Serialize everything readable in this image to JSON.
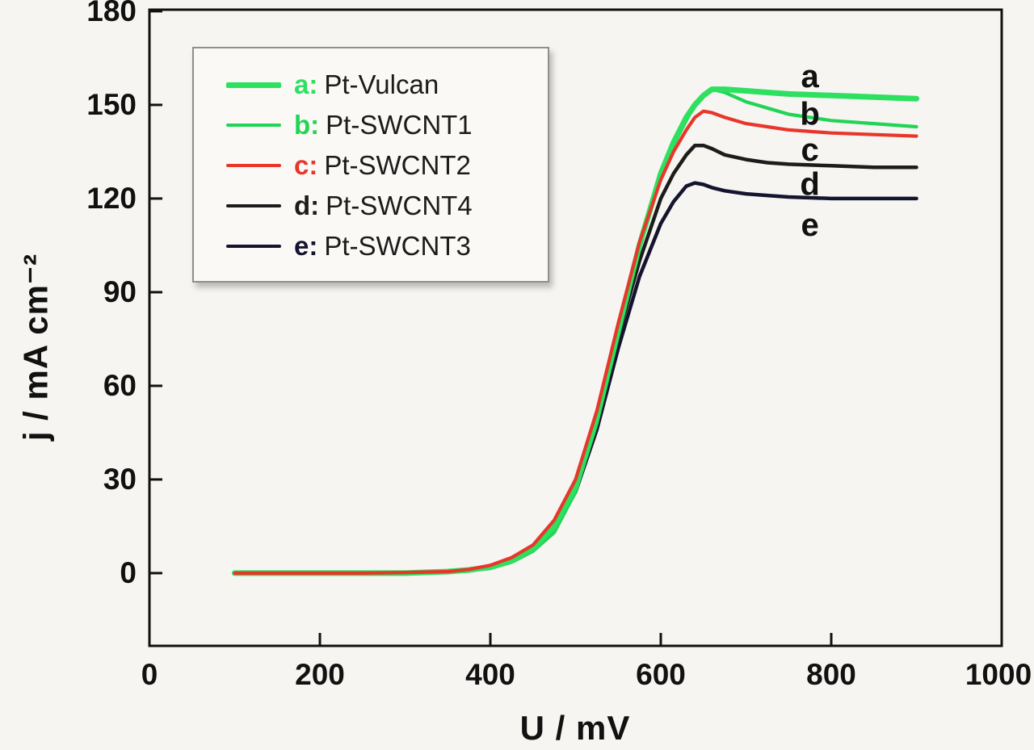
{
  "chart_data": {
    "type": "line",
    "title": "",
    "xlabel": "U / mV",
    "ylabel": "j / mA cm⁻²",
    "xlim": [
      0,
      1000
    ],
    "ylim": [
      -23.3,
      180.5
    ],
    "xticks": [
      0,
      200,
      400,
      600,
      800,
      1000
    ],
    "yticks": [
      0,
      30,
      60,
      90,
      120,
      150,
      180
    ],
    "grid": false,
    "legend_position": "upper-left",
    "x": [
      100,
      150,
      200,
      250,
      300,
      350,
      375,
      400,
      425,
      450,
      475,
      500,
      525,
      550,
      575,
      600,
      615,
      630,
      640,
      650,
      660,
      675,
      700,
      725,
      750,
      800,
      850,
      900
    ],
    "series": [
      {
        "name": "Pt-SWCNT3",
        "letter": "e",
        "color": "#14142e",
        "width": 4.5,
        "values": [
          0,
          0,
          0,
          0,
          0,
          0.4,
          1,
          2,
          4,
          7.5,
          14,
          26,
          46,
          72,
          95,
          112,
          119,
          124,
          125,
          124.5,
          123.5,
          122.5,
          121.5,
          121,
          120.5,
          120,
          120,
          120
        ]
      },
      {
        "name": "Pt-SWCNT4",
        "letter": "d",
        "color": "#1c1c1c",
        "width": 4.5,
        "values": [
          0,
          0,
          0,
          0,
          0,
          0.4,
          1,
          2,
          4,
          8,
          15,
          28,
          49,
          76,
          100,
          120,
          128,
          134,
          137,
          137,
          136,
          134,
          132.5,
          131.5,
          131,
          130.5,
          130,
          130
        ]
      },
      {
        "name": "Pt-SWCNT1",
        "letter": "b",
        "color": "#22d456",
        "width": 4.2,
        "values": [
          0,
          0,
          0,
          0,
          0,
          0.3,
          0.8,
          1.5,
          3.5,
          7,
          13,
          26,
          48,
          76,
          104,
          127,
          137,
          145,
          150,
          153,
          155,
          154,
          151,
          149,
          147,
          145,
          144,
          143
        ]
      },
      {
        "name": "Pt-Vulcan",
        "letter": "a",
        "color": "#2ee05f",
        "width": 7,
        "values": [
          0,
          0,
          0,
          0,
          0,
          0.5,
          1,
          2,
          4,
          8,
          15,
          28,
          50,
          78,
          105,
          128,
          138,
          146,
          150,
          153,
          155,
          155,
          154.5,
          154,
          153.5,
          153,
          152.5,
          152
        ]
      },
      {
        "name": "Pt-SWCNT2",
        "letter": "c",
        "color": "#e8362b",
        "width": 4.2,
        "values": [
          0,
          0,
          0,
          0,
          0.2,
          0.5,
          1.2,
          2.5,
          5,
          9,
          17,
          30,
          52,
          80,
          106,
          126,
          135,
          142,
          146,
          148,
          147.5,
          146,
          144,
          143,
          142,
          141,
          140.5,
          140
        ]
      }
    ],
    "legend": [
      {
        "prefix": "a:",
        "name": "Pt-Vulcan",
        "color": "#2ee05f",
        "thick": 7
      },
      {
        "prefix": "b:",
        "name": "Pt-SWCNT1",
        "color": "#22d456",
        "thick": 4
      },
      {
        "prefix": "c:",
        "name": "Pt-SWCNT2",
        "color": "#e8362b",
        "thick": 4
      },
      {
        "prefix": "d:",
        "name": "Pt-SWCNT4",
        "color": "#1c1c1c",
        "thick": 4
      },
      {
        "prefix": "e:",
        "name": "Pt-SWCNT3",
        "color": "#14142e",
        "thick": 4
      }
    ],
    "annotations": [
      {
        "text": "a",
        "x": 775,
        "y": 159
      },
      {
        "text": "b",
        "x": 775,
        "y": 147
      },
      {
        "text": "c",
        "x": 775,
        "y": 135.5
      },
      {
        "text": "d",
        "x": 775,
        "y": 124.5
      },
      {
        "text": "e",
        "x": 775,
        "y": 111.5
      }
    ],
    "colors": {
      "axis": "#111111",
      "background": "#f6f5f2",
      "tick_label": "#111111"
    }
  }
}
